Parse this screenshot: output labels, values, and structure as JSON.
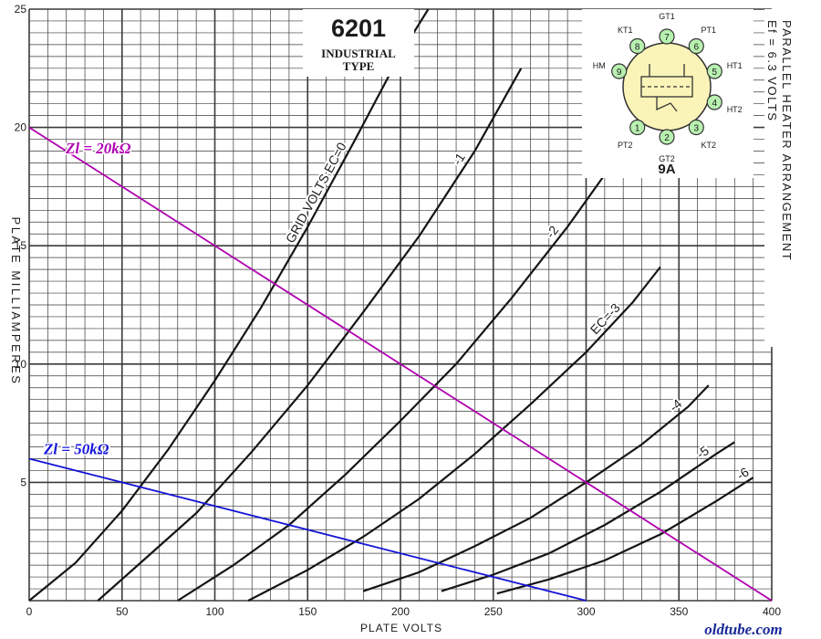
{
  "title": {
    "tube": "6201",
    "subtitle_line1": "INDUSTRIAL",
    "subtitle_line2": "TYPE"
  },
  "side_note": {
    "line1": "Ef = 6.3 VOLTS",
    "line2": "PARALLEL HEATER ARRANGEMENT"
  },
  "base_diagram": {
    "label": "9A",
    "pins": [
      {
        "num": "1",
        "name": "PT2"
      },
      {
        "num": "2",
        "name": "GT2"
      },
      {
        "num": "3",
        "name": "KT2"
      },
      {
        "num": "4",
        "name": "HT2"
      },
      {
        "num": "5",
        "name": "HT1"
      },
      {
        "num": "6",
        "name": "PT1"
      },
      {
        "num": "7",
        "name": "GT1"
      },
      {
        "num": "8",
        "name": "KT1"
      },
      {
        "num": "9",
        "name": "HM"
      }
    ],
    "pin_color": "#b8f0b0",
    "body_color": "#fbf4b8"
  },
  "watermark": "oldtube.com",
  "colors": {
    "grid": "#3a3a3a",
    "curve": "#151515",
    "load_20k": "#b000b0",
    "load_50k": "#1414d8",
    "watermark": "#1a2a9a"
  },
  "chart_data": {
    "type": "line",
    "xlabel": "PLATE VOLTS",
    "ylabel": "PLATE MILLIAMPERES",
    "xlim": [
      0,
      400
    ],
    "ylim": [
      0,
      25
    ],
    "x_ticks": [
      "0",
      "50",
      "100",
      "150",
      "200",
      "250",
      "300",
      "350",
      "400"
    ],
    "y_ticks": [
      "0",
      "5",
      "10",
      "15",
      "20",
      "25"
    ],
    "grid": true,
    "series": [
      {
        "name": "GRID VOLTS EC=0",
        "label_text": "GRID VOLTS EC=0",
        "points": [
          [
            0,
            0
          ],
          [
            25,
            1.6
          ],
          [
            50,
            3.8
          ],
          [
            75,
            6.4
          ],
          [
            100,
            9.3
          ],
          [
            125,
            12.4
          ],
          [
            150,
            15.8
          ],
          [
            175,
            19.4
          ],
          [
            200,
            23.1
          ],
          [
            215,
            25.0
          ]
        ]
      },
      {
        "name": "-1",
        "label_text": "-1",
        "points": [
          [
            37,
            0
          ],
          [
            60,
            1.6
          ],
          [
            90,
            3.7
          ],
          [
            120,
            6.3
          ],
          [
            150,
            9.1
          ],
          [
            180,
            12.2
          ],
          [
            210,
            15.4
          ],
          [
            240,
            19.0
          ],
          [
            265,
            22.5
          ]
        ]
      },
      {
        "name": "-2",
        "label_text": "-2",
        "points": [
          [
            80,
            0
          ],
          [
            110,
            1.5
          ],
          [
            140,
            3.2
          ],
          [
            170,
            5.3
          ],
          [
            200,
            7.6
          ],
          [
            230,
            10.0
          ],
          [
            260,
            12.8
          ],
          [
            290,
            15.8
          ],
          [
            310,
            18.0
          ]
        ]
      },
      {
        "name": "EC=-3",
        "label_text": "EC=-3",
        "points": [
          [
            118,
            0
          ],
          [
            150,
            1.3
          ],
          [
            180,
            2.7
          ],
          [
            210,
            4.3
          ],
          [
            240,
            6.2
          ],
          [
            270,
            8.3
          ],
          [
            300,
            10.5
          ],
          [
            325,
            12.6
          ],
          [
            340,
            14.1
          ]
        ]
      },
      {
        "name": "-4",
        "label_text": "-4",
        "points": [
          [
            180,
            0.4
          ],
          [
            210,
            1.2
          ],
          [
            240,
            2.3
          ],
          [
            270,
            3.5
          ],
          [
            300,
            5.0
          ],
          [
            330,
            6.6
          ],
          [
            355,
            8.2
          ],
          [
            366,
            9.1
          ]
        ]
      },
      {
        "name": "-5",
        "label_text": "-5",
        "points": [
          [
            222,
            0.4
          ],
          [
            250,
            1.1
          ],
          [
            280,
            2.0
          ],
          [
            310,
            3.2
          ],
          [
            340,
            4.6
          ],
          [
            370,
            6.2
          ],
          [
            380,
            6.7
          ]
        ]
      },
      {
        "name": "-6",
        "label_text": "-6",
        "points": [
          [
            252,
            0.3
          ],
          [
            280,
            0.9
          ],
          [
            310,
            1.7
          ],
          [
            340,
            2.8
          ],
          [
            370,
            4.2
          ],
          [
            390,
            5.2
          ]
        ]
      }
    ],
    "load_lines": [
      {
        "name": "Zl = 20kΩ",
        "points": [
          [
            0,
            20
          ],
          [
            400,
            0
          ]
        ],
        "color": "#b000b0"
      },
      {
        "name": "Zl = 50kΩ",
        "points": [
          [
            0,
            6
          ],
          [
            300,
            0
          ]
        ],
        "color": "#1414d8"
      }
    ]
  }
}
